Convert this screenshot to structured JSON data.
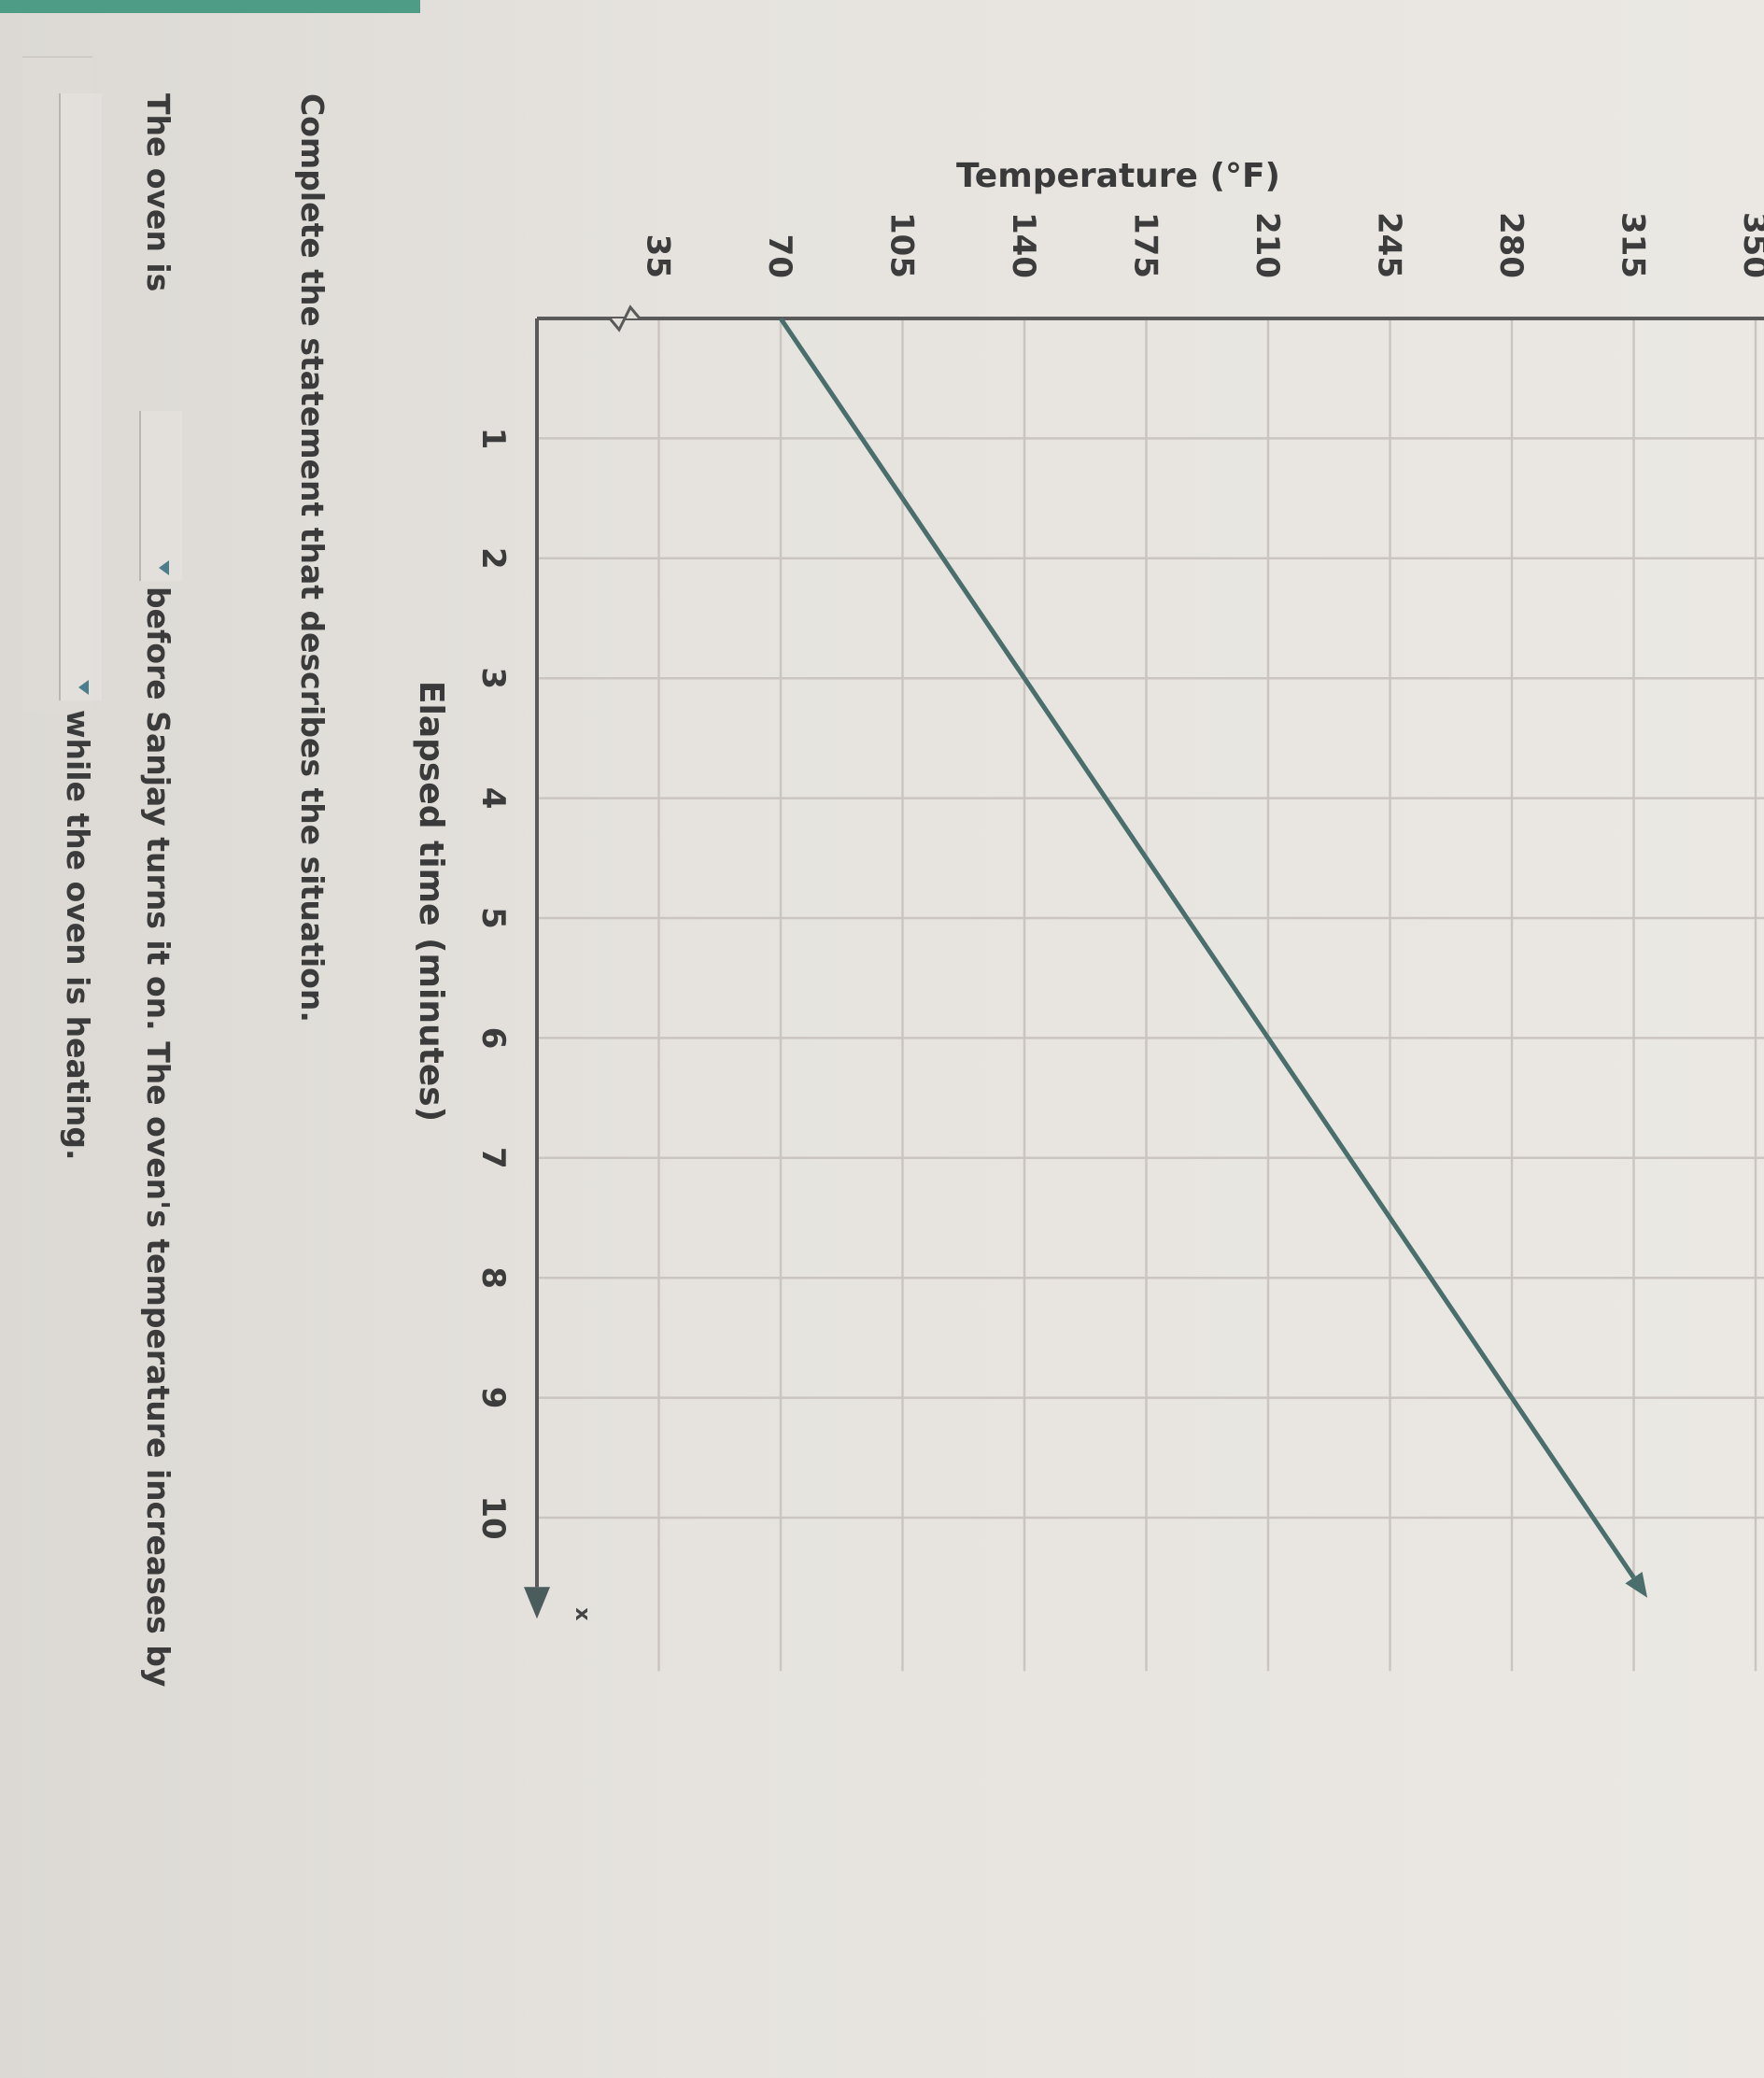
{
  "chart_data": {
    "type": "line",
    "ylabel": "Temperature (°F)",
    "xlabel": "Elapsed time (minutes)",
    "x_ticks": [
      "1",
      "2",
      "3",
      "4",
      "5",
      "6",
      "7",
      "8",
      "9",
      "10"
    ],
    "y_ticks": [
      "35",
      "70",
      "105",
      "140",
      "175",
      "210",
      "245",
      "280",
      "315",
      "350"
    ],
    "x_axis_letter": "x",
    "xlim": [
      0,
      10.5
    ],
    "ylim": [
      0,
      350
    ],
    "y_axis_break": true,
    "grid": true,
    "series": [
      {
        "x": [
          0,
          3,
          6,
          9,
          10.5
        ],
        "y": [
          70,
          140,
          210,
          280,
          315
        ],
        "color": "#4a6e6c"
      }
    ]
  },
  "question": {
    "prompt": "Complete the statement that describes the situation.",
    "line1_start": "The oven is",
    "dropdown1_value": "",
    "line1_end": "before Sanjay turns it on. The oven's temperature increases by",
    "dropdown2_value": "",
    "line2_end": "while the oven is heating."
  },
  "colors": {
    "grid": "#cbc5c1",
    "axis": "#5a5a5a",
    "dropdown_arrow": "#4b7e8c",
    "top_strip": "#4e9c86"
  }
}
